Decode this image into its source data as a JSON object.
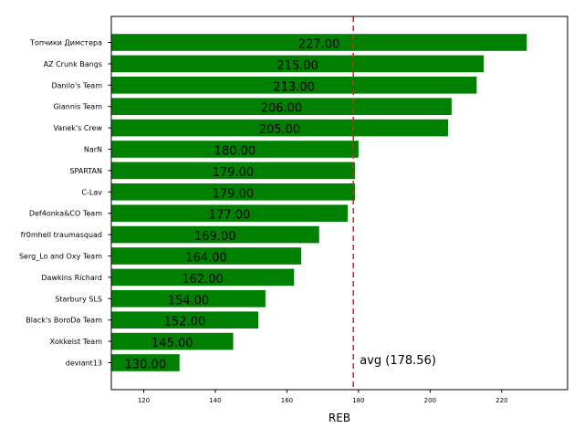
{
  "chart_data": {
    "type": "bar",
    "orientation": "horizontal",
    "categories": [
      "Топчики Димстера",
      "AZ Crunk Bangs",
      "Danilo's Team",
      "Giannis Team",
      "Vanek's Crew",
      "NarN",
      "SPARTAN",
      "C-Lav",
      "Def4onka&CO Team",
      "fr0mhell traumasquad",
      "Serg_Lo and Oxy Team",
      "Dawkins Richard",
      "Starbury SLS",
      "Black's BoroDa Team",
      "Xokkeist Team",
      "deviant13"
    ],
    "values": [
      227,
      215,
      213,
      206,
      205,
      180,
      179,
      179,
      177,
      169,
      164,
      162,
      154,
      152,
      145,
      130
    ],
    "value_labels": [
      "227.00",
      "215.00",
      "213.00",
      "206.00",
      "205.00",
      "180.00",
      "179.00",
      "179.00",
      "177.00",
      "169.00",
      "164.00",
      "162.00",
      "154.00",
      "152.00",
      "145.00",
      "130.00"
    ],
    "xlabel": "REB",
    "ylabel": "",
    "title": "",
    "xlim": [
      110.95,
      238.4
    ],
    "xticks": [
      120,
      140,
      160,
      180,
      200,
      220
    ],
    "bar_color": "#008000",
    "reference_line": {
      "value": 178.56,
      "label": "avg (178.56)",
      "color": "#d62728",
      "style": "dashed"
    },
    "grid": false,
    "legend": "none"
  }
}
